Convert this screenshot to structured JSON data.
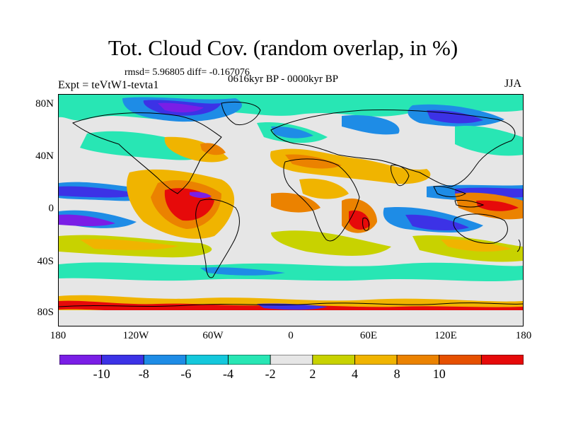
{
  "title": "Tot. Cloud Cov. (random overlap, in %)",
  "stats": "rmsd= 5.96805 diff= -0.167076",
  "expt": "Expt = teVtW1-tevta1",
  "period": "0616kyr BP - 0000kyr BP",
  "season": "JJA",
  "axes": {
    "y_ticks": [
      "80N",
      "40N",
      "0",
      "40S",
      "80S"
    ],
    "x_ticks": [
      "180",
      "120W",
      "60W",
      "0",
      "60E",
      "120E",
      "180"
    ]
  },
  "colorbar": {
    "labels": [
      "-10",
      "-8",
      "-6",
      "-4",
      "-2",
      "2",
      "4",
      "8",
      "10"
    ],
    "colors": [
      "#7a1ee6",
      "#3c32e6",
      "#1e8ce6",
      "#14c8dc",
      "#28e6b4",
      "#e6e6e6",
      "#c8d200",
      "#f0b400",
      "#eb8200",
      "#e65000",
      "#e60a0a"
    ]
  },
  "colors": {
    "land_line": "#000000",
    "background_field": "#e6e6e6"
  }
}
